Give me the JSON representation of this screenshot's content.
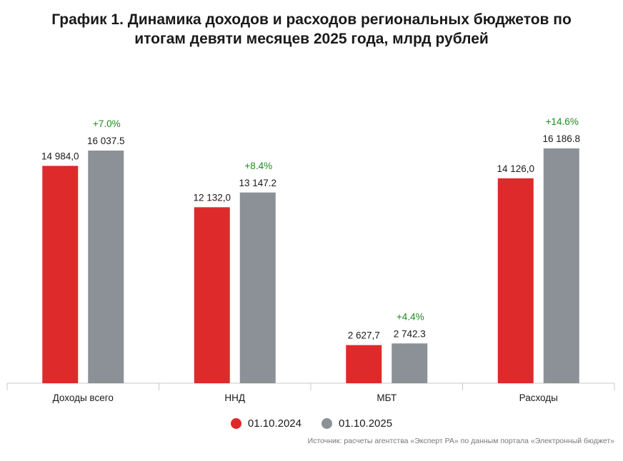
{
  "title_line1": "График 1. Динамика доходов и расходов региональных бюджетов по",
  "title_line2": "итогам девяти месяцев 2025 года, млрд рублей",
  "source": "Источник: расчеты агентства «Эксперт РА» по данным портала «Электронный бюджет»",
  "colors": {
    "series1": "#de2a2a",
    "series2": "#8b9196",
    "change": "#1e8a1e"
  },
  "chart_data": {
    "type": "bar",
    "categories": [
      "Доходы всего",
      "ННД",
      "МБТ",
      "Расходы"
    ],
    "series": [
      {
        "name": "01.10.2024",
        "values": [
          14984.0,
          12132.0,
          2627.7,
          14126.0
        ],
        "labels": [
          "14 984,0",
          "12 132,0",
          "2 627,7",
          "14 126,0"
        ]
      },
      {
        "name": "01.10.2025",
        "values": [
          16037.5,
          13147.2,
          2742.3,
          16186.8
        ],
        "labels": [
          "16 037.5",
          "13 147.2",
          "2 742.3",
          "16 186.8"
        ]
      }
    ],
    "changes": [
      "+7.0%",
      "+8.4%",
      "+4.4%",
      "+14.6%"
    ],
    "ylim": [
      0,
      16500
    ],
    "legend": "bottom-center",
    "grid": false
  }
}
